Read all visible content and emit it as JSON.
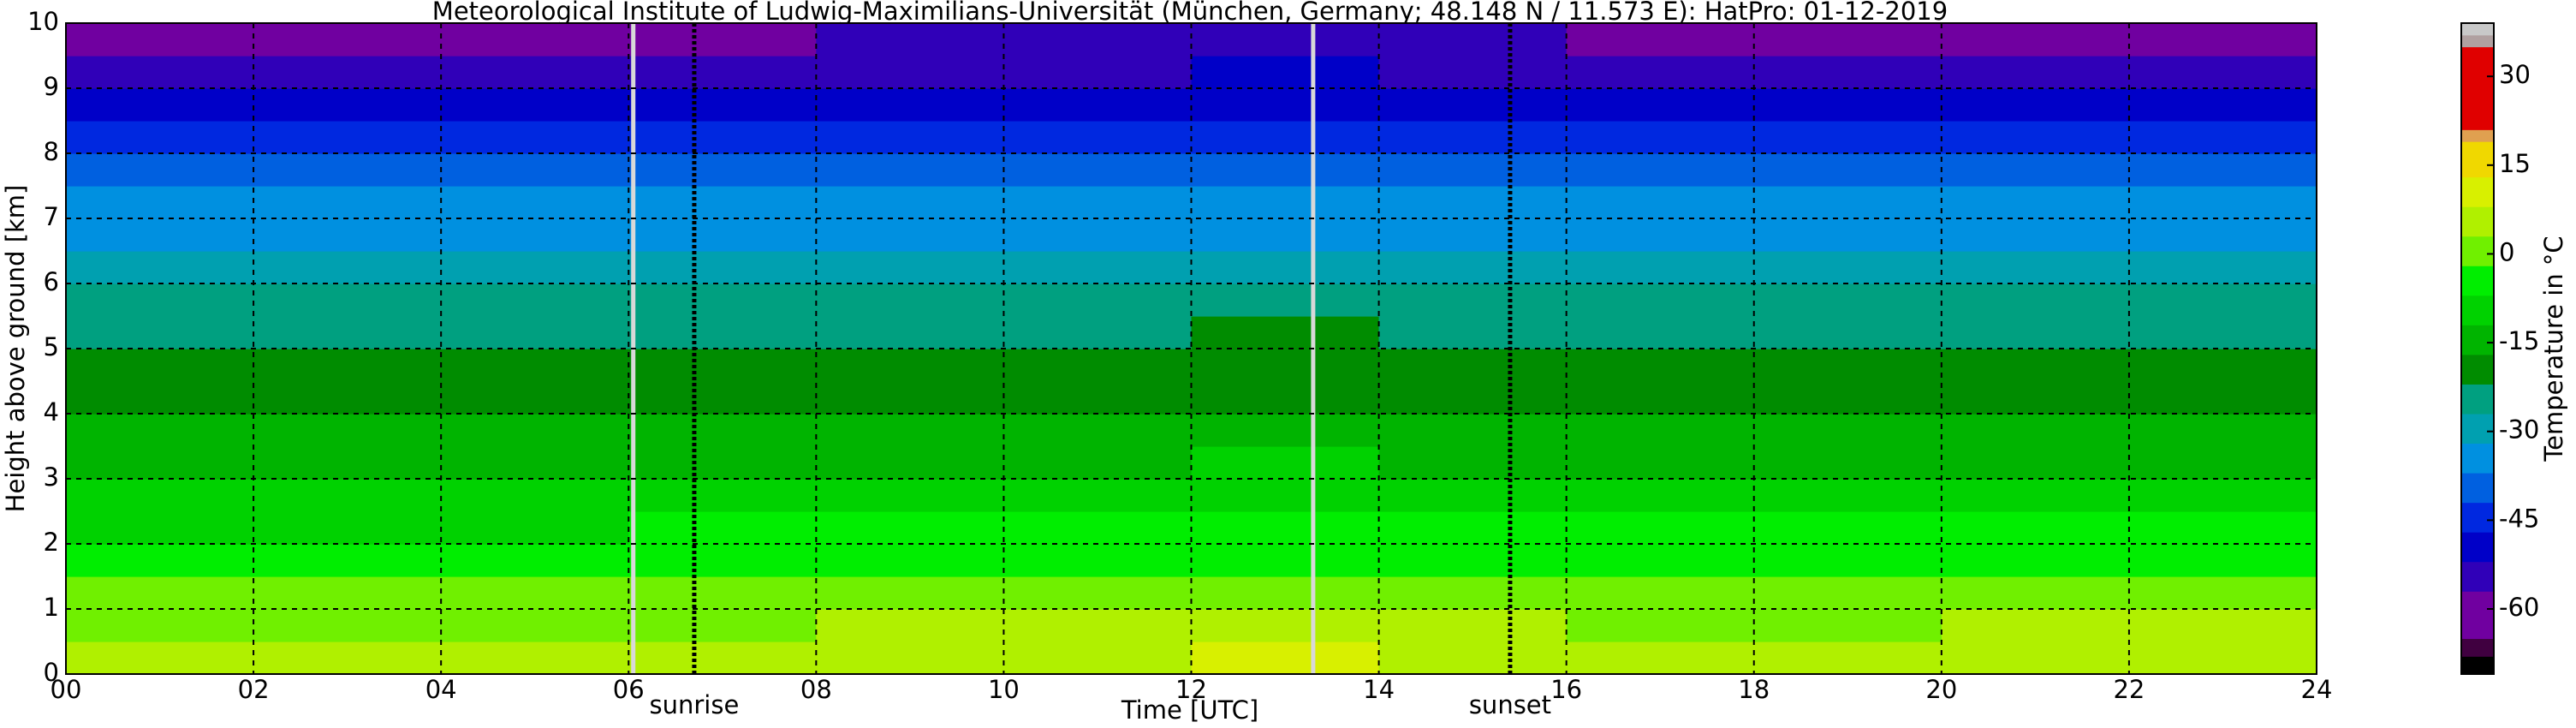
{
  "chart_data": {
    "type": "heatmap",
    "title": "Meteorological Institute of Ludwig-Maximilians-Universität (München, Germany; 48.148 N / 11.573 E):    HatPro: 01-12-2019",
    "x_label": "Time [UTC]",
    "y_label": "Height above ground [km]",
    "xlim": [
      0,
      24
    ],
    "ylim": [
      0,
      10
    ],
    "xticks": [
      {
        "value": 0,
        "label": "00"
      },
      {
        "value": 2,
        "label": "02"
      },
      {
        "value": 4,
        "label": "04"
      },
      {
        "value": 6,
        "label": "06"
      },
      {
        "value": 8,
        "label": "08"
      },
      {
        "value": 10,
        "label": "10"
      },
      {
        "value": 12,
        "label": "12"
      },
      {
        "value": 14,
        "label": "14"
      },
      {
        "value": 16,
        "label": "16"
      },
      {
        "value": 18,
        "label": "18"
      },
      {
        "value": 20,
        "label": "20"
      },
      {
        "value": 22,
        "label": "22"
      },
      {
        "value": 24,
        "label": "24"
      }
    ],
    "yticks": [
      0,
      1,
      2,
      3,
      4,
      5,
      6,
      7,
      8,
      9,
      10
    ],
    "grid": true,
    "x_edges": [
      0,
      2,
      4,
      6,
      8,
      10,
      12,
      14,
      16,
      18,
      20,
      22,
      24
    ],
    "y_edges": [
      0,
      0.5,
      1,
      1.5,
      2,
      2.5,
      3,
      3.5,
      4,
      4.5,
      5,
      5.5,
      6,
      6.5,
      7,
      7.5,
      8,
      8.5,
      9,
      9.5,
      10
    ],
    "values": [
      [
        3,
        3,
        3,
        4,
        6,
        7,
        8,
        5,
        4,
        4,
        5,
        6
      ],
      [
        1,
        1,
        1,
        2,
        4,
        5,
        6,
        3,
        2,
        2,
        3,
        3
      ],
      [
        -2,
        -2,
        -2,
        -1,
        0,
        1,
        1,
        -1,
        -1,
        -1,
        -1,
        -1
      ],
      [
        -5,
        -5,
        -5,
        -4,
        -4,
        -3,
        -3,
        -4,
        -4,
        -4,
        -4,
        -4
      ],
      [
        -8,
        -8,
        -8,
        -7,
        -7,
        -7,
        -6,
        -7,
        -7,
        -7,
        -7,
        -7
      ],
      [
        -11,
        -11,
        -11,
        -10,
        -10,
        -10,
        -9,
        -10,
        -10,
        -10,
        -10,
        -10
      ],
      [
        -14,
        -14,
        -14,
        -13,
        -13,
        -13,
        -12,
        -13,
        -13,
        -13,
        -13,
        -13
      ],
      [
        -17,
        -17,
        -17,
        -16,
        -16,
        -16,
        -15,
        -16,
        -16,
        -16,
        -16,
        -16
      ],
      [
        -19,
        -19,
        -19,
        -19,
        -18,
        -18,
        -18,
        -18,
        -18,
        -19,
        -19,
        -19
      ],
      [
        -21,
        -21,
        -21,
        -21,
        -21,
        -21,
        -20,
        -21,
        -21,
        -21,
        -21,
        -21
      ],
      [
        -24,
        -24,
        -24,
        -24,
        -23,
        -23,
        -22,
        -23,
        -24,
        -24,
        -24,
        -24
      ],
      [
        -27,
        -27,
        -27,
        -27,
        -27,
        -27,
        -26,
        -27,
        -27,
        -27,
        -27,
        -27
      ],
      [
        -30,
        -30,
        -30,
        -30,
        -30,
        -31,
        -30,
        -30,
        -30,
        -30,
        -30,
        -30
      ],
      [
        -33,
        -33,
        -33,
        -33,
        -33,
        -34,
        -33,
        -33,
        -33,
        -33,
        -33,
        -33
      ],
      [
        -37,
        -37,
        -37,
        -37,
        -37,
        -37,
        -36,
        -37,
        -37,
        -37,
        -37,
        -37
      ],
      [
        -42,
        -42,
        -42,
        -42,
        -41,
        -41,
        -40,
        -41,
        -42,
        -42,
        -42,
        -42
      ],
      [
        -47,
        -47,
        -47,
        -47,
        -46,
        -45,
        -44,
        -47,
        -47,
        -47,
        -47,
        -47
      ],
      [
        -52,
        -52,
        -51,
        -51,
        -50,
        -50,
        -48,
        -50,
        -51,
        -51,
        -51,
        -51
      ],
      [
        -56,
        -56,
        -55,
        -54,
        -53,
        -53,
        -52,
        -53,
        -54,
        -54,
        -54,
        -55
      ],
      [
        -61,
        -61,
        -60,
        -58,
        -57,
        -57,
        -55,
        -57,
        -58,
        -58,
        -58,
        -60
      ]
    ],
    "missing_data_x": [
      6.05,
      13.3
    ],
    "annotations": [
      {
        "text": "sunrise",
        "x": 6.7
      },
      {
        "text": "sunset",
        "x": 15.4
      }
    ],
    "colorbar": {
      "label": "Temperature in °C",
      "lim": [
        -71,
        39
      ],
      "ticks": [
        -60,
        -45,
        -30,
        -15,
        0,
        15,
        30
      ],
      "bounds": [
        -71,
        -68,
        -65,
        -57,
        -52,
        -47,
        -42,
        -37,
        -32,
        -27,
        -22,
        -17,
        -12,
        -7,
        -2,
        3,
        8,
        13,
        19,
        21,
        35,
        37,
        39
      ],
      "colors": [
        "#000000",
        "#400040",
        "#7000a0",
        "#3000b8",
        "#0000c8",
        "#0028e0",
        "#0060e0",
        "#0090e0",
        "#00a0b0",
        "#00a080",
        "#008c00",
        "#00b400",
        "#00d200",
        "#00ee00",
        "#70f000",
        "#b0f000",
        "#d8f000",
        "#f0d800",
        "#e0a050",
        "#e00000",
        "#b0a0a0",
        "#c8c8c8"
      ]
    }
  }
}
